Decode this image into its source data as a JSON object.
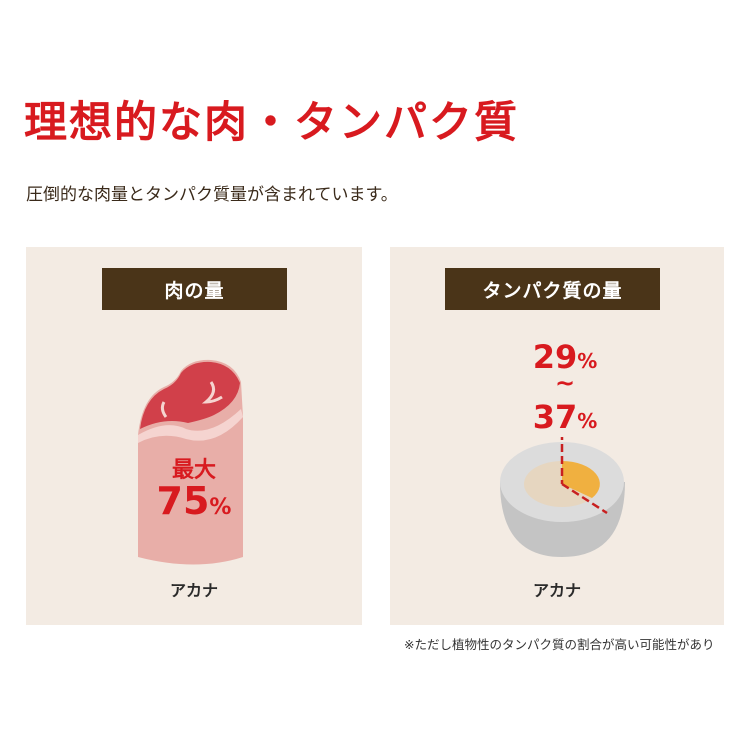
{
  "title": "理想的な肉・タンパク質",
  "subtitle": "圧倒的な肉量とタンパク質量が含まれています。",
  "panels": [
    {
      "header": "肉の量",
      "label_top": "最大",
      "value": "75",
      "unit": "%",
      "brand": "アカナ",
      "icon": "meat-icon"
    },
    {
      "header": "タンパク質の量",
      "value_min": "29",
      "tilde": "~",
      "value_max": "37",
      "unit": "%",
      "brand": "アカナ",
      "icon": "egg-icon"
    }
  ],
  "note": "※ただし植物性のタンパク質の割合が高い可能性があり",
  "colors": {
    "accent": "#d81a1f",
    "header_bg": "#4a3418",
    "panel_bg": "#f3ebe3"
  }
}
